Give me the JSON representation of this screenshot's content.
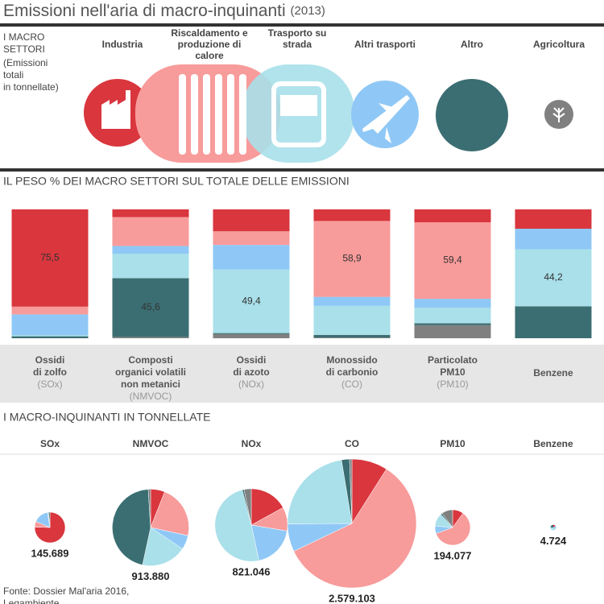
{
  "title": "Emissioni nell'aria di macro-inquinanti",
  "title_year": "(2013)",
  "sectors_heading": [
    "I MACRO",
    "SETTORI"
  ],
  "sectors_note": [
    "(Emissioni",
    "totali",
    "in tonnellate)"
  ],
  "source": [
    "Fonte: Dossier Mal'aria 2016,",
    "Legambiente"
  ],
  "chart_data": [
    {
      "type": "stacked-bar",
      "title": "IL PESO % DEI MACRO SETTORI SUL TOTALE DELLE EMISSIONI",
      "categories": [
        [
          "Ossidi",
          "di zolfo"
        ],
        [
          "Composti",
          "organici volatili",
          "non metanici"
        ],
        [
          "Ossidi",
          "di azoto"
        ],
        [
          "Monossido",
          "di carbonio"
        ],
        [
          "Particolato",
          "PM10"
        ],
        [
          "Benzene"
        ]
      ],
      "category_codes": [
        "(SOx)",
        "(NMVOC)",
        "(NOx)",
        "(CO)",
        "(PM10)",
        null
      ],
      "ylim": [
        0,
        100
      ],
      "series": [
        {
          "name": "Agricoltura",
          "color": "#808080",
          "values": [
            0,
            1,
            3.2,
            0.6,
            10.1,
            0
          ],
          "value_labels": [
            null,
            null,
            null,
            null,
            null,
            null
          ]
        },
        {
          "name": "Altro",
          "color": "#3b6e72",
          "values": [
            1.5,
            45.6,
            0.8,
            2,
            1.5,
            24.8
          ],
          "value_labels": [
            null,
            "45,6",
            null,
            null,
            null,
            null
          ]
        },
        {
          "name": "Trasporto su strada",
          "color": "#a9e0ea",
          "values": [
            1,
            19,
            49.4,
            22.5,
            12,
            44.2
          ],
          "value_labels": [
            null,
            null,
            "49,4",
            null,
            null,
            "44,2"
          ]
        },
        {
          "name": "Altri trasporti",
          "color": "#8fc8f6",
          "values": [
            16,
            6,
            19,
            7,
            7,
            16
          ],
          "value_labels": [
            null,
            null,
            null,
            null,
            null,
            null
          ]
        },
        {
          "name": "Riscaldamento e produzione di calore",
          "color": "#f89b9b",
          "values": [
            6,
            22.4,
            10.6,
            58.9,
            59.4,
            0
          ],
          "value_labels": [
            null,
            null,
            null,
            "58,9",
            "59,4",
            null
          ]
        },
        {
          "name": "Industria",
          "color": "#d9363e",
          "values": [
            75.5,
            6,
            17,
            9,
            10,
            15
          ],
          "value_labels": [
            "75,5",
            null,
            null,
            null,
            null,
            null
          ]
        }
      ]
    },
    {
      "type": "pie",
      "title": "I MACRO-INQUINANTI IN TONNELLATE",
      "categories": [
        "SOx",
        "NMVOC",
        "NOx",
        "CO",
        "PM10",
        "Benzene"
      ],
      "values": [
        145689,
        913880,
        821046,
        2579103,
        194077,
        4724
      ],
      "value_labels": [
        "145.689",
        "913.880",
        "821.046",
        "2.579.103",
        "194.077",
        "4.724"
      ]
    }
  ]
}
